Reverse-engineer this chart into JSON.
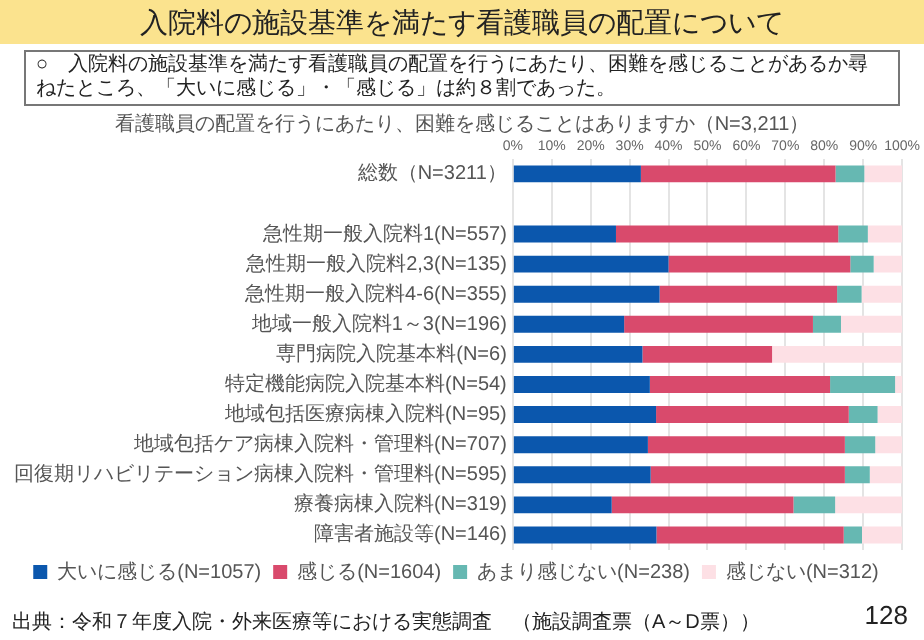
{
  "chart_data": {
    "type": "bar",
    "orientation": "horizontal",
    "stacked": true,
    "title": "入院料の施設基準を満たす看護職員の配置について",
    "subtitle": "○　入院料の施設基準を満たす看護職員の配置を行うにあたり、困難を感じることがあるか尋ねたところ、「大いに感じる」・「感じる」は約８割であった。",
    "annotations": [
      "看護職員の配置を行うにあたり、困難を感じることはありますか（N=3,211）",
      "出典：令和７年度入院・外来医療等における実態調査　（施設調査票（A～D票））",
      "128"
    ],
    "categories": [
      "総数（N=3211）",
      null,
      "急性期一般入院料1(N=557)",
      "急性期一般入院料2,3(N=135)",
      "急性期一般入院料4-6(N=355)",
      "地域一般入院料1～3(N=196)",
      "専門病院入院基本料(N=6)",
      "特定機能病院入院基本料(N=54)",
      "地域包括医療病棟入院料(N=95)",
      "地域包括ケア病棟入院料・管理料(N=707)",
      "回復期リハビリテーション病棟入院料・管理料(N=595)",
      "療養病棟入院料(N=319)",
      "障害者施設等(N=146)"
    ],
    "series": [
      {
        "name": "大いに感じる(N=1057)",
        "color": "#0b57ad",
        "values": [
          32.9,
          null,
          26.5,
          40.0,
          37.7,
          28.6,
          33.3,
          35.2,
          36.8,
          34.7,
          35.4,
          25.4,
          36.9
        ]
      },
      {
        "name": "感じる(N=1604)",
        "color": "#d94a6c",
        "values": [
          50.0,
          null,
          57.1,
          46.7,
          45.6,
          48.5,
          33.3,
          46.3,
          49.5,
          50.6,
          49.9,
          46.7,
          48.1
        ]
      },
      {
        "name": "あまり感じない(N=238)",
        "color": "#66b8b2",
        "values": [
          7.4,
          null,
          7.6,
          6.0,
          6.3,
          7.2,
          0,
          16.7,
          7.4,
          7.8,
          6.4,
          10.7,
          4.7
        ]
      },
      {
        "name": "感じない(N=312)",
        "color": "#fde0e5",
        "values": [
          9.7,
          null,
          8.8,
          7.3,
          10.4,
          15.7,
          33.3,
          1.9,
          6.3,
          6.9,
          8.3,
          17.2,
          10.3
        ]
      }
    ],
    "xlim": [
      0,
      100
    ],
    "xticks": [
      {
        "value": 0,
        "label": "0%"
      },
      {
        "value": 10,
        "label": "10%"
      },
      {
        "value": 20,
        "label": "20%"
      },
      {
        "value": 30,
        "label": "30%"
      },
      {
        "value": 40,
        "label": "40%"
      },
      {
        "value": 50,
        "label": "50%"
      },
      {
        "value": 60,
        "label": "60%"
      },
      {
        "value": 70,
        "label": "70%"
      },
      {
        "value": 80,
        "label": "80%"
      },
      {
        "value": 90,
        "label": "90%"
      },
      {
        "value": 100,
        "label": "100%"
      }
    ],
    "grid": "x",
    "legend": "bottom"
  }
}
